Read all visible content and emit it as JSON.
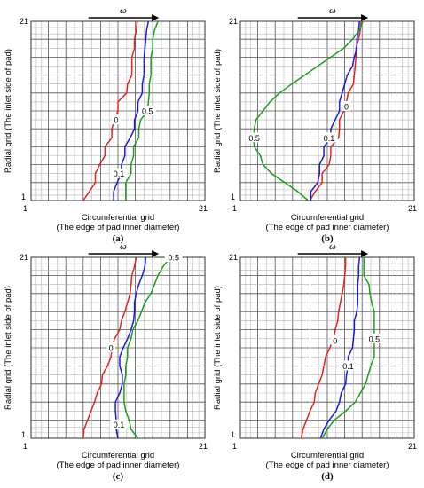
{
  "x_label_line1": "Circumferential grid",
  "x_label_line2": "(The edge of pad inner diameter)",
  "y_label": "Radial grid (The inlet side of pad)",
  "flow_label": "ω",
  "tick_min": "1",
  "tick_max": "21",
  "series_colors": {
    "0": "#e8231f",
    "0.1": "#1a1adf",
    "0.5": "#1aa01a"
  },
  "panels": [
    {
      "caption": "(a)",
      "contours": [
        {
          "level": "0",
          "color": "#e8231f",
          "points": [
            [
              7,
              1
            ],
            [
              7.7,
              2
            ],
            [
              8.4,
              3
            ],
            [
              8.4,
              4
            ],
            [
              8.9,
              5
            ],
            [
              9.5,
              6
            ],
            [
              9.5,
              7
            ],
            [
              10.3,
              8
            ],
            [
              10.3,
              9
            ],
            [
              10.6,
              10
            ],
            [
              11,
              11
            ],
            [
              11,
              12
            ],
            [
              12,
              13
            ],
            [
              12.1,
              14
            ],
            [
              12.6,
              15
            ],
            [
              12.6,
              16
            ],
            [
              12.6,
              17
            ],
            [
              12.9,
              18
            ],
            [
              12.9,
              19
            ],
            [
              13.1,
              20
            ],
            [
              13.2,
              21
            ]
          ],
          "label_at": [
            10.8,
            10
          ]
        },
        {
          "level": "0.1",
          "color": "#1a1adf",
          "points": [
            [
              10.5,
              1
            ],
            [
              10.5,
              2
            ],
            [
              10.9,
              3
            ],
            [
              11.4,
              4
            ],
            [
              11.4,
              5
            ],
            [
              11.8,
              6
            ],
            [
              11.8,
              7
            ],
            [
              12.4,
              8
            ],
            [
              12.9,
              9
            ],
            [
              12.9,
              10
            ],
            [
              13.3,
              11
            ],
            [
              13.3,
              12
            ],
            [
              13.8,
              13
            ],
            [
              13.8,
              14
            ],
            [
              14,
              15
            ],
            [
              14,
              16
            ],
            [
              14,
              17
            ],
            [
              14.1,
              18
            ],
            [
              14.2,
              19
            ],
            [
              14.3,
              20
            ],
            [
              14.5,
              21
            ]
          ],
          "label_at": [
            11.1,
            4
          ]
        },
        {
          "level": "0.5",
          "color": "#1aa01a",
          "points": [
            [
              11.9,
              1
            ],
            [
              11.9,
              2
            ],
            [
              11.9,
              3
            ],
            [
              12.5,
              4
            ],
            [
              12.5,
              5
            ],
            [
              12.8,
              6
            ],
            [
              12.8,
              7
            ],
            [
              13.4,
              8
            ],
            [
              13.4,
              9
            ],
            [
              13.6,
              10
            ],
            [
              14.4,
              11
            ],
            [
              14.5,
              12
            ],
            [
              14.6,
              13
            ],
            [
              14.6,
              14
            ],
            [
              14.8,
              15
            ],
            [
              14.8,
              16
            ],
            [
              14.8,
              17
            ],
            [
              15,
              18
            ],
            [
              15,
              19
            ],
            [
              15.2,
              20
            ],
            [
              15.6,
              21
            ]
          ],
          "label_at": [
            14.4,
            11
          ]
        }
      ]
    },
    {
      "caption": "(b)",
      "contours": [
        {
          "level": "0",
          "color": "#e8231f",
          "points": [
            [
              9,
              1
            ],
            [
              9.6,
              2
            ],
            [
              10.4,
              3
            ],
            [
              10.4,
              4
            ],
            [
              11.2,
              5
            ],
            [
              11.4,
              6
            ],
            [
              11.4,
              7
            ],
            [
              12.3,
              8
            ],
            [
              12.4,
              9
            ],
            [
              12.4,
              10
            ],
            [
              12.9,
              11
            ],
            [
              13.2,
              12
            ],
            [
              13.4,
              13
            ],
            [
              14,
              14
            ],
            [
              14.1,
              15
            ],
            [
              14.2,
              16
            ],
            [
              14.3,
              17
            ],
            [
              14.3,
              18
            ],
            [
              14.6,
              19
            ],
            [
              14.8,
              20
            ],
            [
              14.9,
              21
            ]
          ],
          "label_at": [
            13.2,
            11.5
          ]
        },
        {
          "level": "0.1",
          "color": "#1a1adf",
          "points": [
            [
              9.1,
              1
            ],
            [
              9.1,
              2
            ],
            [
              9.9,
              3
            ],
            [
              10.1,
              4
            ],
            [
              10.1,
              5
            ],
            [
              10.6,
              6
            ],
            [
              10.6,
              7
            ],
            [
              11.4,
              8
            ],
            [
              11.4,
              9
            ],
            [
              11.9,
              10
            ],
            [
              12.4,
              11
            ],
            [
              12.4,
              12
            ],
            [
              12.7,
              13
            ],
            [
              13,
              14
            ],
            [
              13.3,
              15
            ],
            [
              13.9,
              16
            ],
            [
              14.1,
              17
            ],
            [
              14.4,
              18
            ],
            [
              14.4,
              19
            ],
            [
              14.6,
              20
            ],
            [
              14.7,
              21
            ]
          ],
          "label_at": [
            11.2,
            8
          ]
        },
        {
          "level": "0.5",
          "color": "#1aa01a",
          "points": [
            [
              8.8,
              1
            ],
            [
              7.6,
              2
            ],
            [
              6.1,
              3
            ],
            [
              4.6,
              4
            ],
            [
              3.6,
              5
            ],
            [
              3.3,
              6
            ],
            [
              2.6,
              7
            ],
            [
              2.5,
              8
            ],
            [
              2.6,
              9
            ],
            [
              2.8,
              10
            ],
            [
              3.6,
              11
            ],
            [
              4.4,
              12
            ],
            [
              5.5,
              13
            ],
            [
              6.9,
              14
            ],
            [
              8.4,
              15
            ],
            [
              9.9,
              16
            ],
            [
              11.4,
              17
            ],
            [
              12.9,
              18
            ],
            [
              13.9,
              19
            ],
            [
              14.7,
              20
            ],
            [
              15.1,
              21
            ]
          ],
          "label_at": [
            2.6,
            8
          ]
        }
      ]
    },
    {
      "caption": "(c)",
      "contours": [
        {
          "level": "0",
          "color": "#e8231f",
          "points": [
            [
              7,
              1
            ],
            [
              7.1,
              2
            ],
            [
              7.5,
              3
            ],
            [
              7.9,
              4
            ],
            [
              8.3,
              5
            ],
            [
              8.6,
              6
            ],
            [
              9.1,
              7
            ],
            [
              9.2,
              8
            ],
            [
              9.8,
              9
            ],
            [
              10.2,
              10
            ],
            [
              10.3,
              11
            ],
            [
              10.6,
              12
            ],
            [
              11.2,
              13
            ],
            [
              11.4,
              14
            ],
            [
              11.8,
              15
            ],
            [
              12.1,
              16
            ],
            [
              12.4,
              17
            ],
            [
              12.5,
              18
            ],
            [
              12.6,
              19
            ],
            [
              12.9,
              20
            ],
            [
              13.1,
              21
            ]
          ],
          "label_at": [
            10.2,
            11
          ]
        },
        {
          "level": "0.1",
          "color": "#1a1adf",
          "points": [
            [
              11,
              1
            ],
            [
              10.8,
              2
            ],
            [
              10.8,
              3
            ],
            [
              10.7,
              4
            ],
            [
              10.7,
              5
            ],
            [
              11.2,
              6
            ],
            [
              11.5,
              7
            ],
            [
              11.5,
              8
            ],
            [
              11.2,
              9
            ],
            [
              11.2,
              10
            ],
            [
              11.6,
              11
            ],
            [
              12.1,
              12
            ],
            [
              12.5,
              13
            ],
            [
              12.8,
              14
            ],
            [
              12.9,
              15
            ],
            [
              12.9,
              16
            ],
            [
              13.1,
              17
            ],
            [
              13.4,
              18
            ],
            [
              13.8,
              19
            ],
            [
              14.1,
              20
            ],
            [
              14.2,
              21
            ]
          ],
          "label_at": [
            11.1,
            2.5
          ]
        },
        {
          "level": "0.5",
          "color": "#1aa01a",
          "points": [
            [
              13.3,
              1
            ],
            [
              12.5,
              2
            ],
            [
              12.3,
              3
            ],
            [
              11.9,
              4
            ],
            [
              11.7,
              5
            ],
            [
              11.7,
              6
            ],
            [
              11.7,
              7
            ],
            [
              11.9,
              8
            ],
            [
              11.9,
              9
            ],
            [
              12.1,
              10
            ],
            [
              12.1,
              11
            ],
            [
              12.5,
              12
            ],
            [
              12.7,
              13
            ],
            [
              13.3,
              14
            ],
            [
              13.7,
              15
            ],
            [
              14.1,
              16
            ],
            [
              14.8,
              17
            ],
            [
              15.2,
              18
            ],
            [
              15.6,
              19
            ],
            [
              16.2,
              20
            ],
            [
              17,
              21
            ]
          ],
          "label_at": [
            17.4,
            21
          ]
        }
      ]
    },
    {
      "caption": "(d)",
      "contours": [
        {
          "level": "0",
          "color": "#e8231f",
          "points": [
            [
              8,
              1
            ],
            [
              8.2,
              2
            ],
            [
              8.6,
              3
            ],
            [
              9,
              4
            ],
            [
              9.5,
              5
            ],
            [
              9.6,
              6
            ],
            [
              10,
              7
            ],
            [
              10.4,
              8
            ],
            [
              10.6,
              9
            ],
            [
              10.8,
              10
            ],
            [
              11.3,
              11
            ],
            [
              11.7,
              12
            ],
            [
              11.9,
              13
            ],
            [
              12.2,
              14
            ],
            [
              12.3,
              15
            ],
            [
              12.5,
              16
            ],
            [
              12.7,
              17
            ],
            [
              12.9,
              18
            ],
            [
              13,
              19
            ],
            [
              13.1,
              20
            ],
            [
              13.1,
              21
            ]
          ],
          "label_at": [
            11.9,
            11.8
          ]
        },
        {
          "level": "0.1",
          "color": "#1a1adf",
          "points": [
            [
              10.2,
              1
            ],
            [
              10.6,
              2
            ],
            [
              11.2,
              3
            ],
            [
              12,
              4
            ],
            [
              12.4,
              5
            ],
            [
              12.6,
              6
            ],
            [
              13.1,
              7
            ],
            [
              13.2,
              8
            ],
            [
              13.4,
              9
            ],
            [
              13.4,
              10
            ],
            [
              13.9,
              11
            ],
            [
              14,
              12
            ],
            [
              14.1,
              13
            ],
            [
              14.1,
              14
            ],
            [
              14.4,
              15
            ],
            [
              14.5,
              16
            ],
            [
              14.5,
              17
            ],
            [
              14.5,
              18
            ],
            [
              14.6,
              19
            ],
            [
              14.6,
              20
            ],
            [
              14.7,
              21
            ]
          ],
          "label_at": [
            13.4,
            9
          ]
        },
        {
          "level": "0.5",
          "color": "#1aa01a",
          "points": [
            [
              10.4,
              1
            ],
            [
              11,
              2
            ],
            [
              11.8,
              3
            ],
            [
              13.1,
              4
            ],
            [
              14.2,
              5
            ],
            [
              14.8,
              6
            ],
            [
              15.4,
              7
            ],
            [
              15.7,
              8
            ],
            [
              16,
              9
            ],
            [
              16.4,
              10
            ],
            [
              16.4,
              11
            ],
            [
              16.4,
              12
            ],
            [
              16.4,
              13
            ],
            [
              16.4,
              14
            ],
            [
              16.4,
              15
            ],
            [
              16.1,
              16
            ],
            [
              15.9,
              17
            ],
            [
              15.8,
              18
            ],
            [
              15.2,
              19
            ],
            [
              15.2,
              20
            ],
            [
              15.2,
              21
            ]
          ],
          "label_at": [
            16.4,
            12
          ]
        }
      ]
    }
  ]
}
